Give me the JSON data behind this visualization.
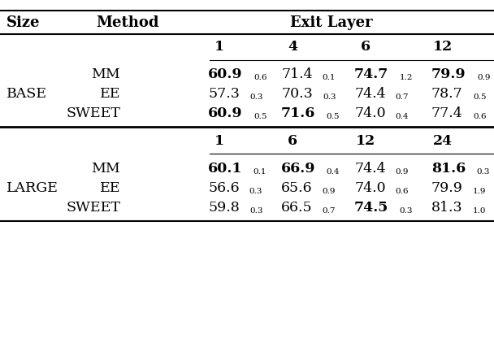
{
  "title_col1": "Size",
  "title_col2": "Method",
  "title_col3": "Exit Layer",
  "base_exit_layers": [
    "1",
    "4",
    "6",
    "12"
  ],
  "large_exit_layers": [
    "1",
    "6",
    "12",
    "24"
  ],
  "base_rows": [
    {
      "method": "MM",
      "values": [
        "60.9",
        "71.4",
        "74.7",
        "79.9"
      ],
      "subs": [
        "0.6",
        "0.1",
        "1.2",
        "0.9"
      ],
      "bold": [
        true,
        false,
        true,
        true
      ]
    },
    {
      "method": "EE",
      "values": [
        "57.3",
        "70.3",
        "74.4",
        "78.7"
      ],
      "subs": [
        "0.3",
        "0.3",
        "0.7",
        "0.5"
      ],
      "bold": [
        false,
        false,
        false,
        false
      ]
    },
    {
      "method": "SWEET",
      "values": [
        "60.9",
        "71.6",
        "74.0",
        "77.4"
      ],
      "subs": [
        "0.5",
        "0.5",
        "0.4",
        "0.6"
      ],
      "bold": [
        true,
        true,
        false,
        false
      ]
    }
  ],
  "large_rows": [
    {
      "method": "MM",
      "values": [
        "60.1",
        "66.9",
        "74.4",
        "81.6"
      ],
      "subs": [
        "0.1",
        "0.4",
        "0.9",
        "0.3"
      ],
      "bold": [
        true,
        true,
        false,
        true
      ]
    },
    {
      "method": "EE",
      "values": [
        "56.6",
        "65.6",
        "74.0",
        "79.9"
      ],
      "subs": [
        "0.3",
        "0.9",
        "0.6",
        "1.9"
      ],
      "bold": [
        false,
        false,
        false,
        false
      ]
    },
    {
      "method": "SWEET",
      "values": [
        "59.8",
        "66.5",
        "74.5",
        "81.3"
      ],
      "subs": [
        "0.3",
        "0.7",
        "0.3",
        "1.0"
      ],
      "bold": [
        false,
        false,
        true,
        false
      ]
    }
  ],
  "bg_color": "#ffffff",
  "text_color": "#000000",
  "font_size_main": 12.5,
  "font_size_sub": 7.5,
  "font_size_header": 13
}
